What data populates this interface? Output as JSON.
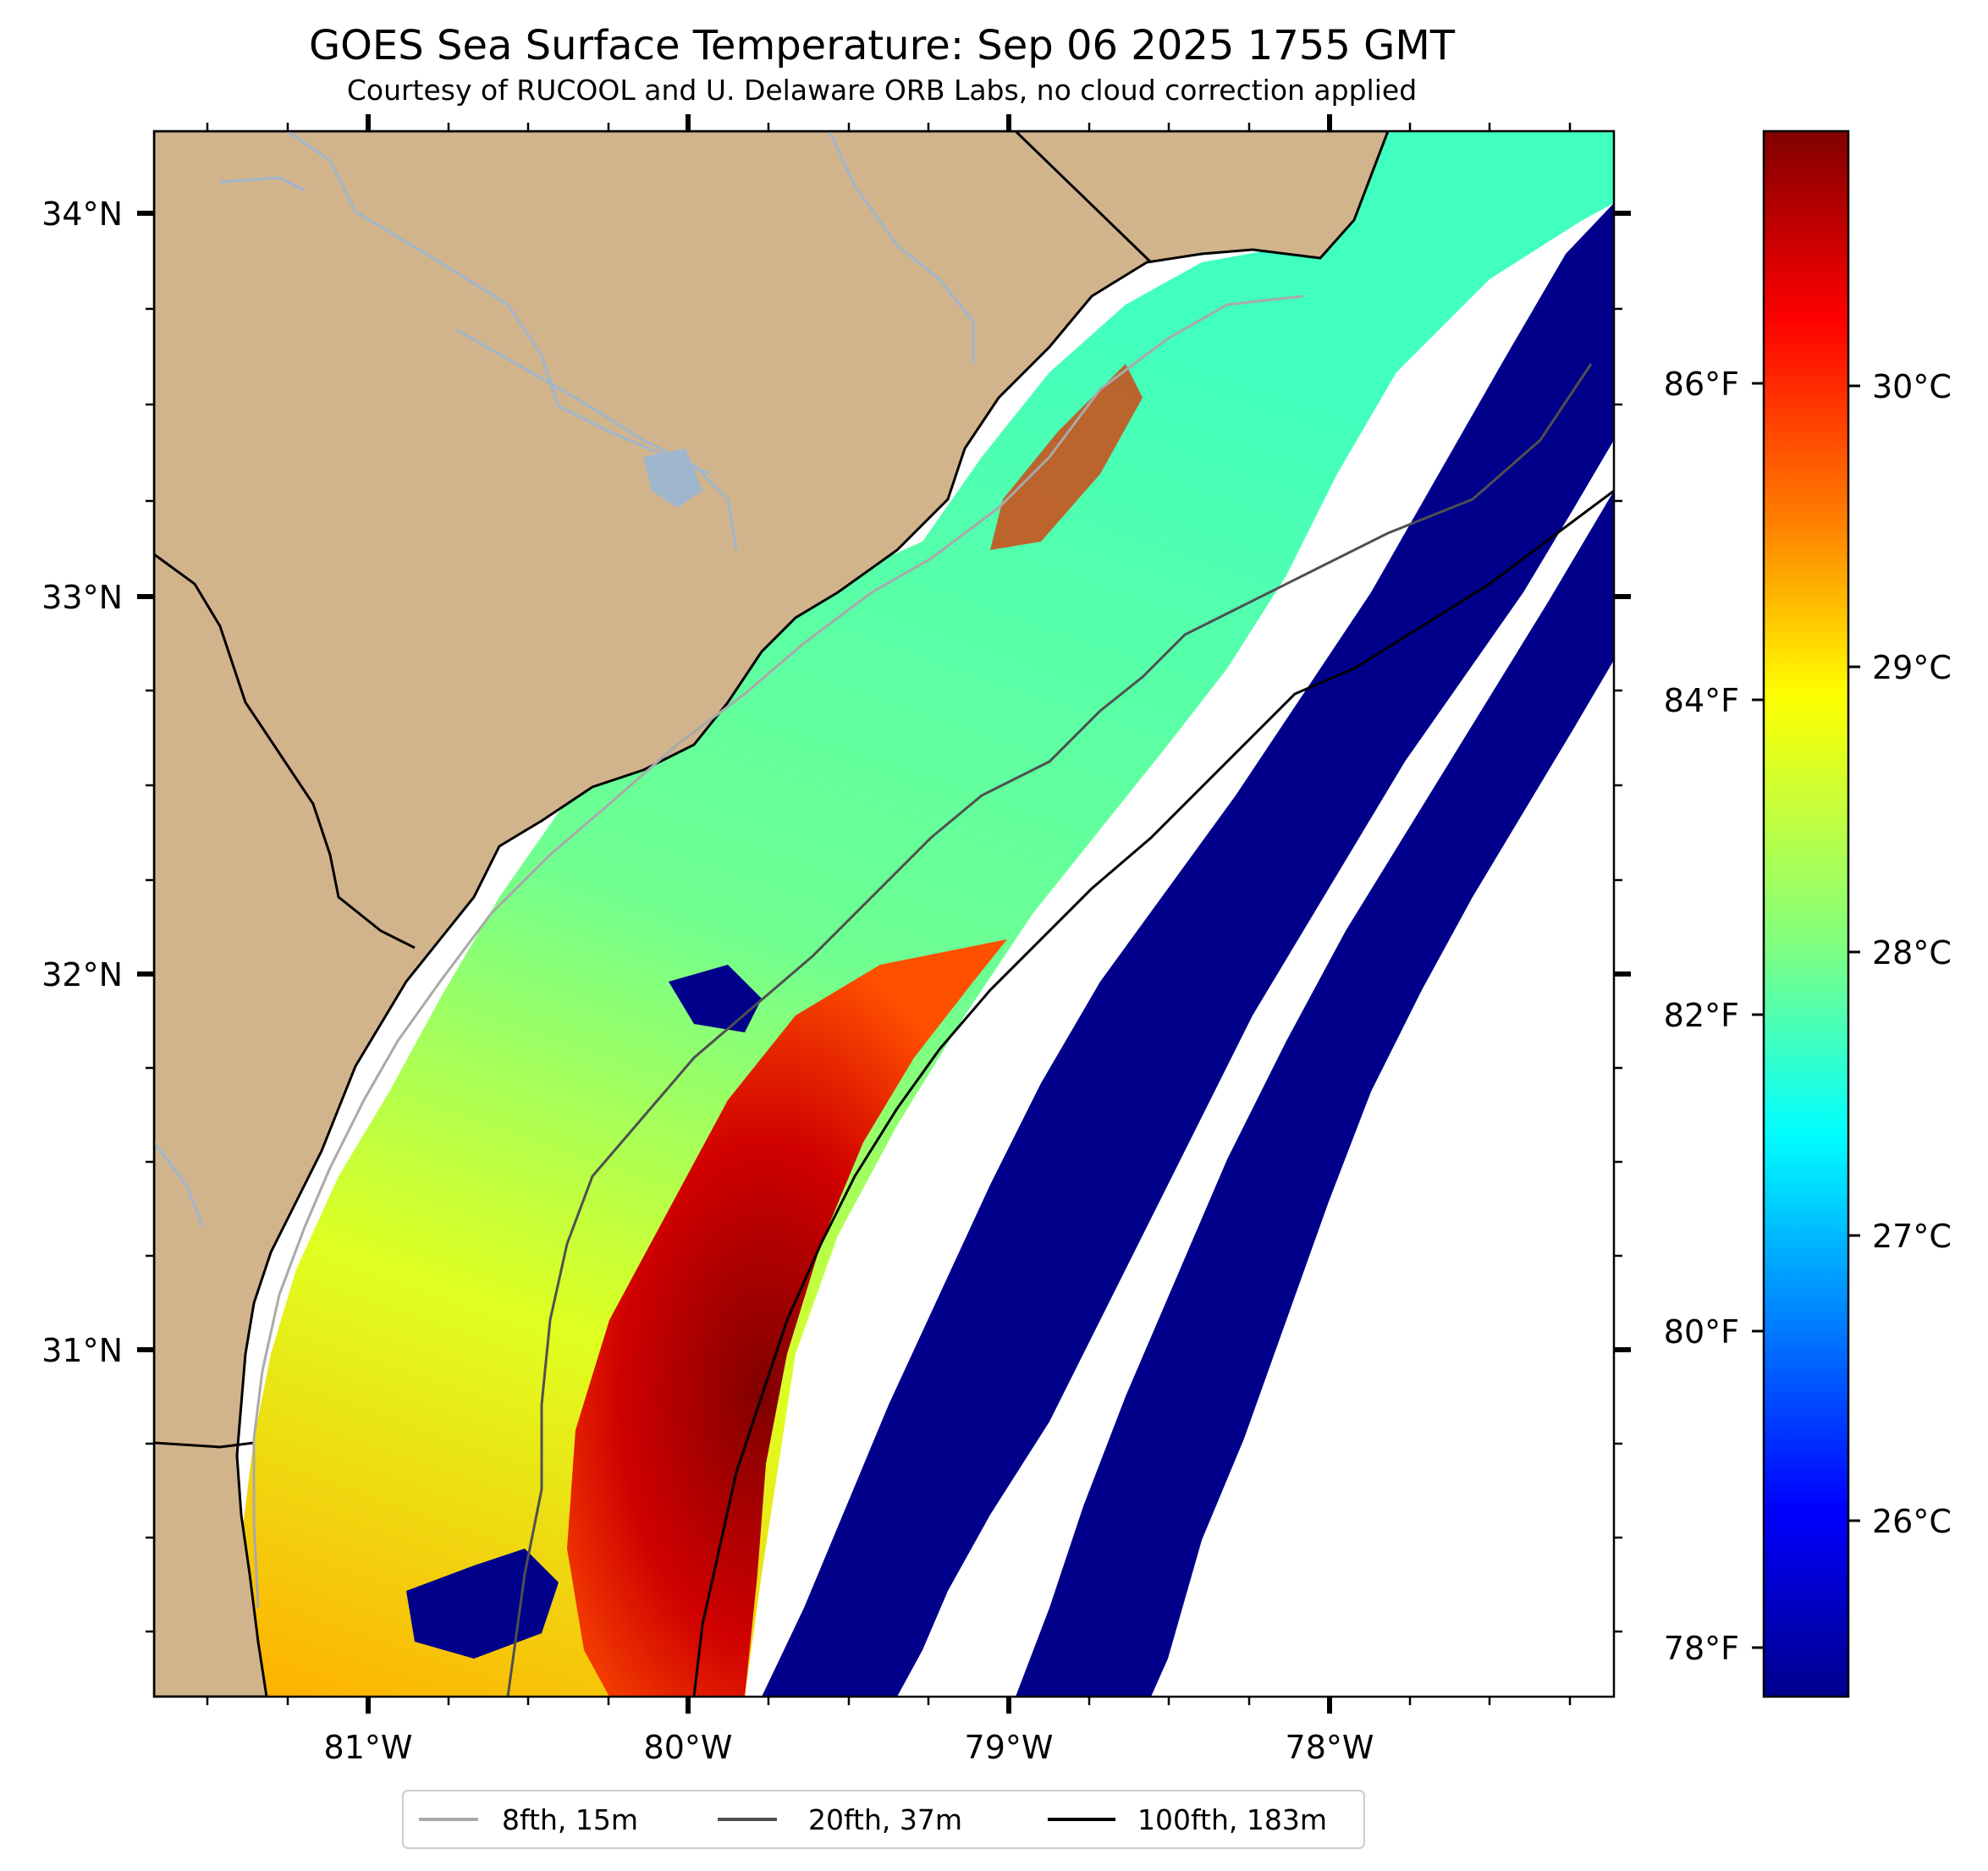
{
  "title": "GOES Sea Surface Temperature: Sep 06 2025 1755 GMT",
  "subtitle": "Courtesy of RUCOOL and U. Delaware ORB Labs, no cloud correction applied",
  "map": {
    "lon_labels": [
      "81°W",
      "80°W",
      "79°W",
      "78°W"
    ],
    "lat_labels": [
      "34°N",
      "33°N",
      "32°N",
      "31°N"
    ],
    "land_color": "#d2b48c",
    "coast_color": "#000000",
    "river_color": "#9fb6cd"
  },
  "colorbar": {
    "fahrenheit_labels": [
      "86°F",
      "84°F",
      "82°F",
      "80°F",
      "78°F"
    ],
    "celsius_labels": [
      "30°C",
      "29°C",
      "28°C",
      "27°C",
      "26°C"
    ],
    "colormap": "jet",
    "stops": [
      "#800000",
      "#ff0000",
      "#ff8000",
      "#ffff00",
      "#80ff80",
      "#00ffff",
      "#0080ff",
      "#0000ff",
      "#00008b"
    ]
  },
  "legend": {
    "items": [
      {
        "label": "8fth, 15m",
        "color": "#a9a9a9"
      },
      {
        "label": "20fth, 37m",
        "color": "#505050"
      },
      {
        "label": "100fth, 183m",
        "color": "#000000"
      }
    ]
  }
}
